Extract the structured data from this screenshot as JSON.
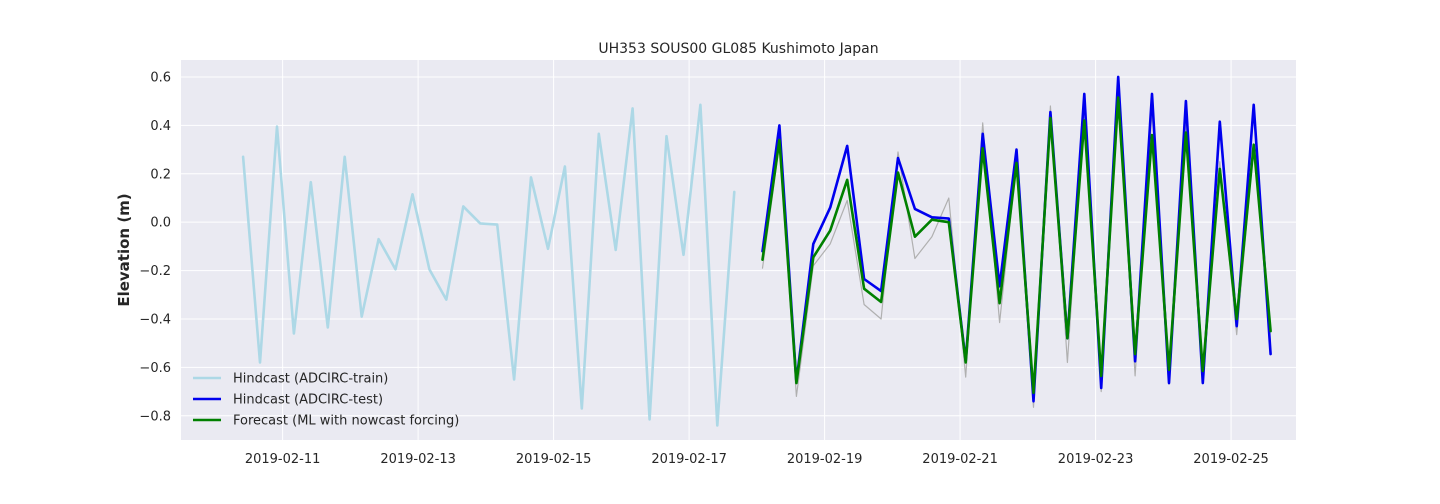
{
  "chart_data": {
    "type": "line",
    "title": "UH353 SOUS00 GL085 Kushimoto Japan",
    "xlabel": "",
    "ylabel": "Elevation (m)",
    "x_unit": "date (days)",
    "xlim": [
      "2019-02-09 12:00",
      "2019-02-25 23:00"
    ],
    "ylim": [
      -0.9,
      0.67
    ],
    "grid": true,
    "background": "#eaeaf2",
    "legend_position": "lower-left",
    "x_ticks": [
      "2019-02-11",
      "2019-02-13",
      "2019-02-15",
      "2019-02-17",
      "2019-02-19",
      "2019-02-21",
      "2019-02-23",
      "2019-02-25"
    ],
    "y_ticks": [
      "0.6",
      "0.4",
      "0.2",
      "0.0",
      "−0.2",
      "−0.4",
      "−0.6",
      "−0.8"
    ],
    "y_tick_values": [
      0.6,
      0.4,
      0.2,
      0.0,
      -0.2,
      -0.4,
      -0.6,
      -0.8
    ],
    "series": [
      {
        "name": "Hindcast (ADCIRC-train)",
        "color": "#add8e6",
        "x_start": "2019-02-10 10:00",
        "x_step_hours": 6,
        "values": [
          0.27,
          -0.58,
          0.395,
          -0.46,
          0.165,
          -0.435,
          0.27,
          -0.39,
          -0.07,
          -0.195,
          0.115,
          -0.195,
          -0.32,
          0.065,
          -0.005,
          -0.01,
          -0.65,
          0.185,
          -0.11,
          0.23,
          -0.77,
          0.365,
          -0.115,
          0.47,
          -0.815,
          0.355,
          -0.135,
          0.485,
          -0.84,
          0.125
        ]
      },
      {
        "name": "",
        "color": "#b0b0b0",
        "x_start": "2019-02-18 02:00",
        "x_step_hours": 6,
        "values": [
          -0.19,
          0.32,
          -0.72,
          -0.18,
          -0.09,
          0.09,
          -0.34,
          -0.4,
          0.29,
          -0.15,
          -0.06,
          0.1,
          -0.64,
          0.41,
          -0.415,
          0.25,
          -0.765,
          0.48,
          -0.58,
          0.47,
          -0.7,
          0.58,
          -0.635,
          0.46,
          -0.67,
          0.42,
          -0.66,
          0.25,
          -0.465,
          0.32,
          -0.44
        ]
      },
      {
        "name": "Hindcast (ADCIRC-test)",
        "color": "#0000ee",
        "x_start": "2019-02-18 02:00",
        "x_step_hours": 6,
        "values": [
          -0.12,
          0.4,
          -0.66,
          -0.09,
          0.06,
          0.315,
          -0.235,
          -0.285,
          0.265,
          0.055,
          0.02,
          0.015,
          -0.575,
          0.365,
          -0.265,
          0.3,
          -0.74,
          0.455,
          -0.48,
          0.53,
          -0.685,
          0.6,
          -0.575,
          0.53,
          -0.665,
          0.5,
          -0.665,
          0.415,
          -0.43,
          0.485,
          -0.545
        ]
      },
      {
        "name": "Forecast (ML with nowcast forcing)",
        "color": "#008000",
        "x_start": "2019-02-18 02:00",
        "x_step_hours": 6,
        "values": [
          -0.155,
          0.34,
          -0.665,
          -0.145,
          -0.035,
          0.175,
          -0.275,
          -0.33,
          0.205,
          -0.06,
          0.01,
          0.0,
          -0.58,
          0.305,
          -0.335,
          0.245,
          -0.705,
          0.43,
          -0.48,
          0.42,
          -0.635,
          0.515,
          -0.545,
          0.36,
          -0.61,
          0.37,
          -0.615,
          0.22,
          -0.4,
          0.32,
          -0.45
        ]
      }
    ]
  }
}
